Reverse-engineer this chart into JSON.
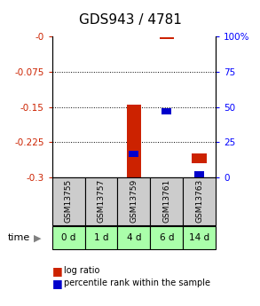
{
  "title": "GDS943 / 4781",
  "samples": [
    "GSM13755",
    "GSM13757",
    "GSM13759",
    "GSM13761",
    "GSM13763"
  ],
  "time_labels": [
    "0 d",
    "1 d",
    "4 d",
    "6 d",
    "14 d"
  ],
  "log_ratio_bottom": [
    0.0,
    0.0,
    -0.3,
    -0.005,
    -0.27
  ],
  "log_ratio_top": [
    0.0,
    0.0,
    -0.145,
    -0.001,
    -0.248
  ],
  "percentile_ranks": [
    null,
    null,
    17.0,
    47.0,
    2.0
  ],
  "ylim_left": [
    -0.3,
    0.0
  ],
  "ylim_right": [
    0.0,
    100.0
  ],
  "yticks_left": [
    0.0,
    -0.075,
    -0.15,
    -0.225,
    -0.3
  ],
  "ytick_labels_left": [
    "-0",
    "-0.075",
    "-0.15",
    "-0.225",
    "-0.3"
  ],
  "yticks_right": [
    100,
    75,
    50,
    25,
    0
  ],
  "bar_color_red": "#cc2200",
  "bar_color_blue": "#0000cc",
  "sample_bg_color": "#cccccc",
  "time_bg_color": "#aaffaa",
  "bar_width": 0.45,
  "legend_red_label": "log ratio",
  "legend_blue_label": "percentile rank within the sample",
  "title_fontsize": 11,
  "tick_fontsize": 7.5,
  "grid_ticks": [
    -0.075,
    -0.15,
    -0.225
  ]
}
